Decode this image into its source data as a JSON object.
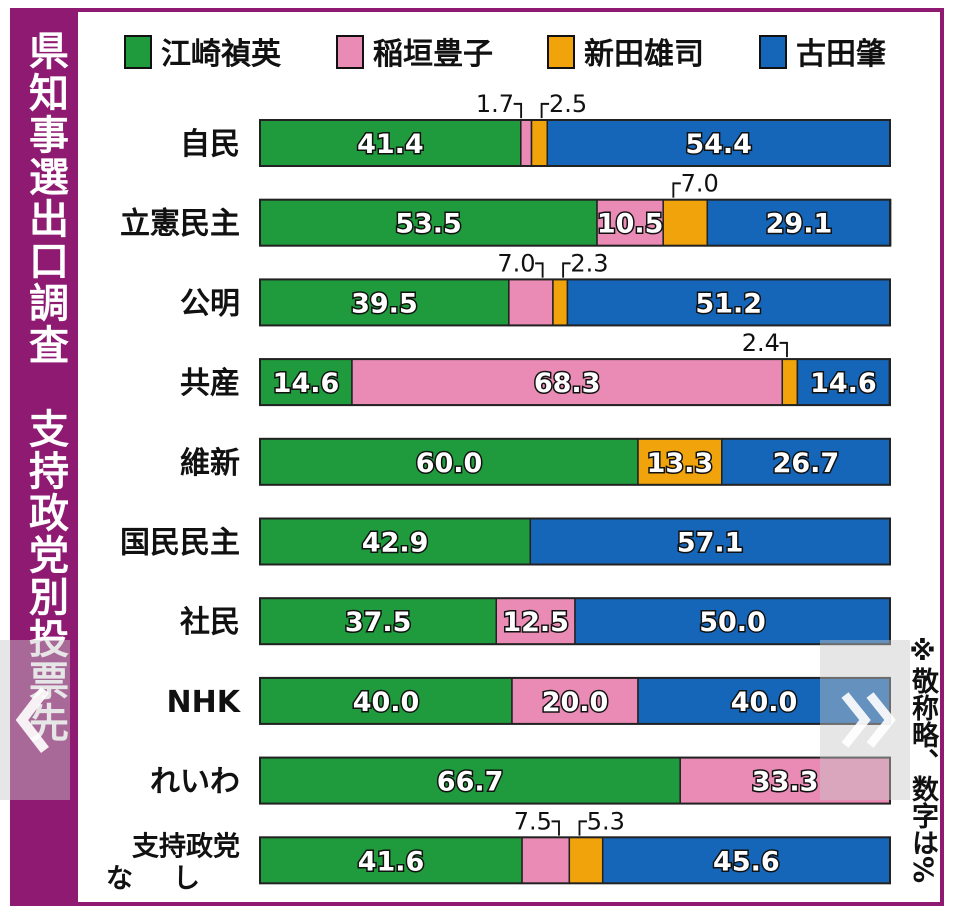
{
  "title": "県知事選出口調査　支持政党別投票先",
  "note": "※敬称略、数字は%",
  "nav": {
    "prev_icon": "chevron-left-icon",
    "next_icon": "chevron-right-icon"
  },
  "chart_data": {
    "type": "bar",
    "orientation": "horizontal",
    "stacked": true,
    "title": "県知事選出口調査　支持政党別投票先",
    "unit": "%",
    "xlim": [
      0,
      100
    ],
    "legend_position": "top",
    "categories": [
      "自民",
      "立憲民主",
      "公明",
      "共産",
      "維新",
      "国民民主",
      "社民",
      "NHK",
      "れいわ",
      "支持政党なし"
    ],
    "series": [
      {
        "name": "江崎禎英",
        "color": "#1f9a3c",
        "values": [
          41.4,
          53.5,
          39.5,
          14.6,
          60.0,
          42.9,
          37.5,
          40.0,
          66.7,
          41.6
        ]
      },
      {
        "name": "稲垣豊子",
        "color": "#e98bb4",
        "values": [
          1.7,
          10.5,
          7.0,
          68.3,
          0,
          0,
          12.5,
          20.0,
          33.3,
          7.5
        ]
      },
      {
        "name": "新田雄司",
        "color": "#f0a30a",
        "values": [
          2.5,
          7.0,
          2.3,
          2.4,
          13.3,
          0,
          0,
          0,
          0,
          5.3
        ]
      },
      {
        "name": "古田肇",
        "color": "#1565b8",
        "values": [
          54.4,
          29.1,
          51.2,
          14.6,
          26.7,
          57.1,
          50.0,
          40.0,
          0,
          45.6
        ]
      }
    ]
  }
}
